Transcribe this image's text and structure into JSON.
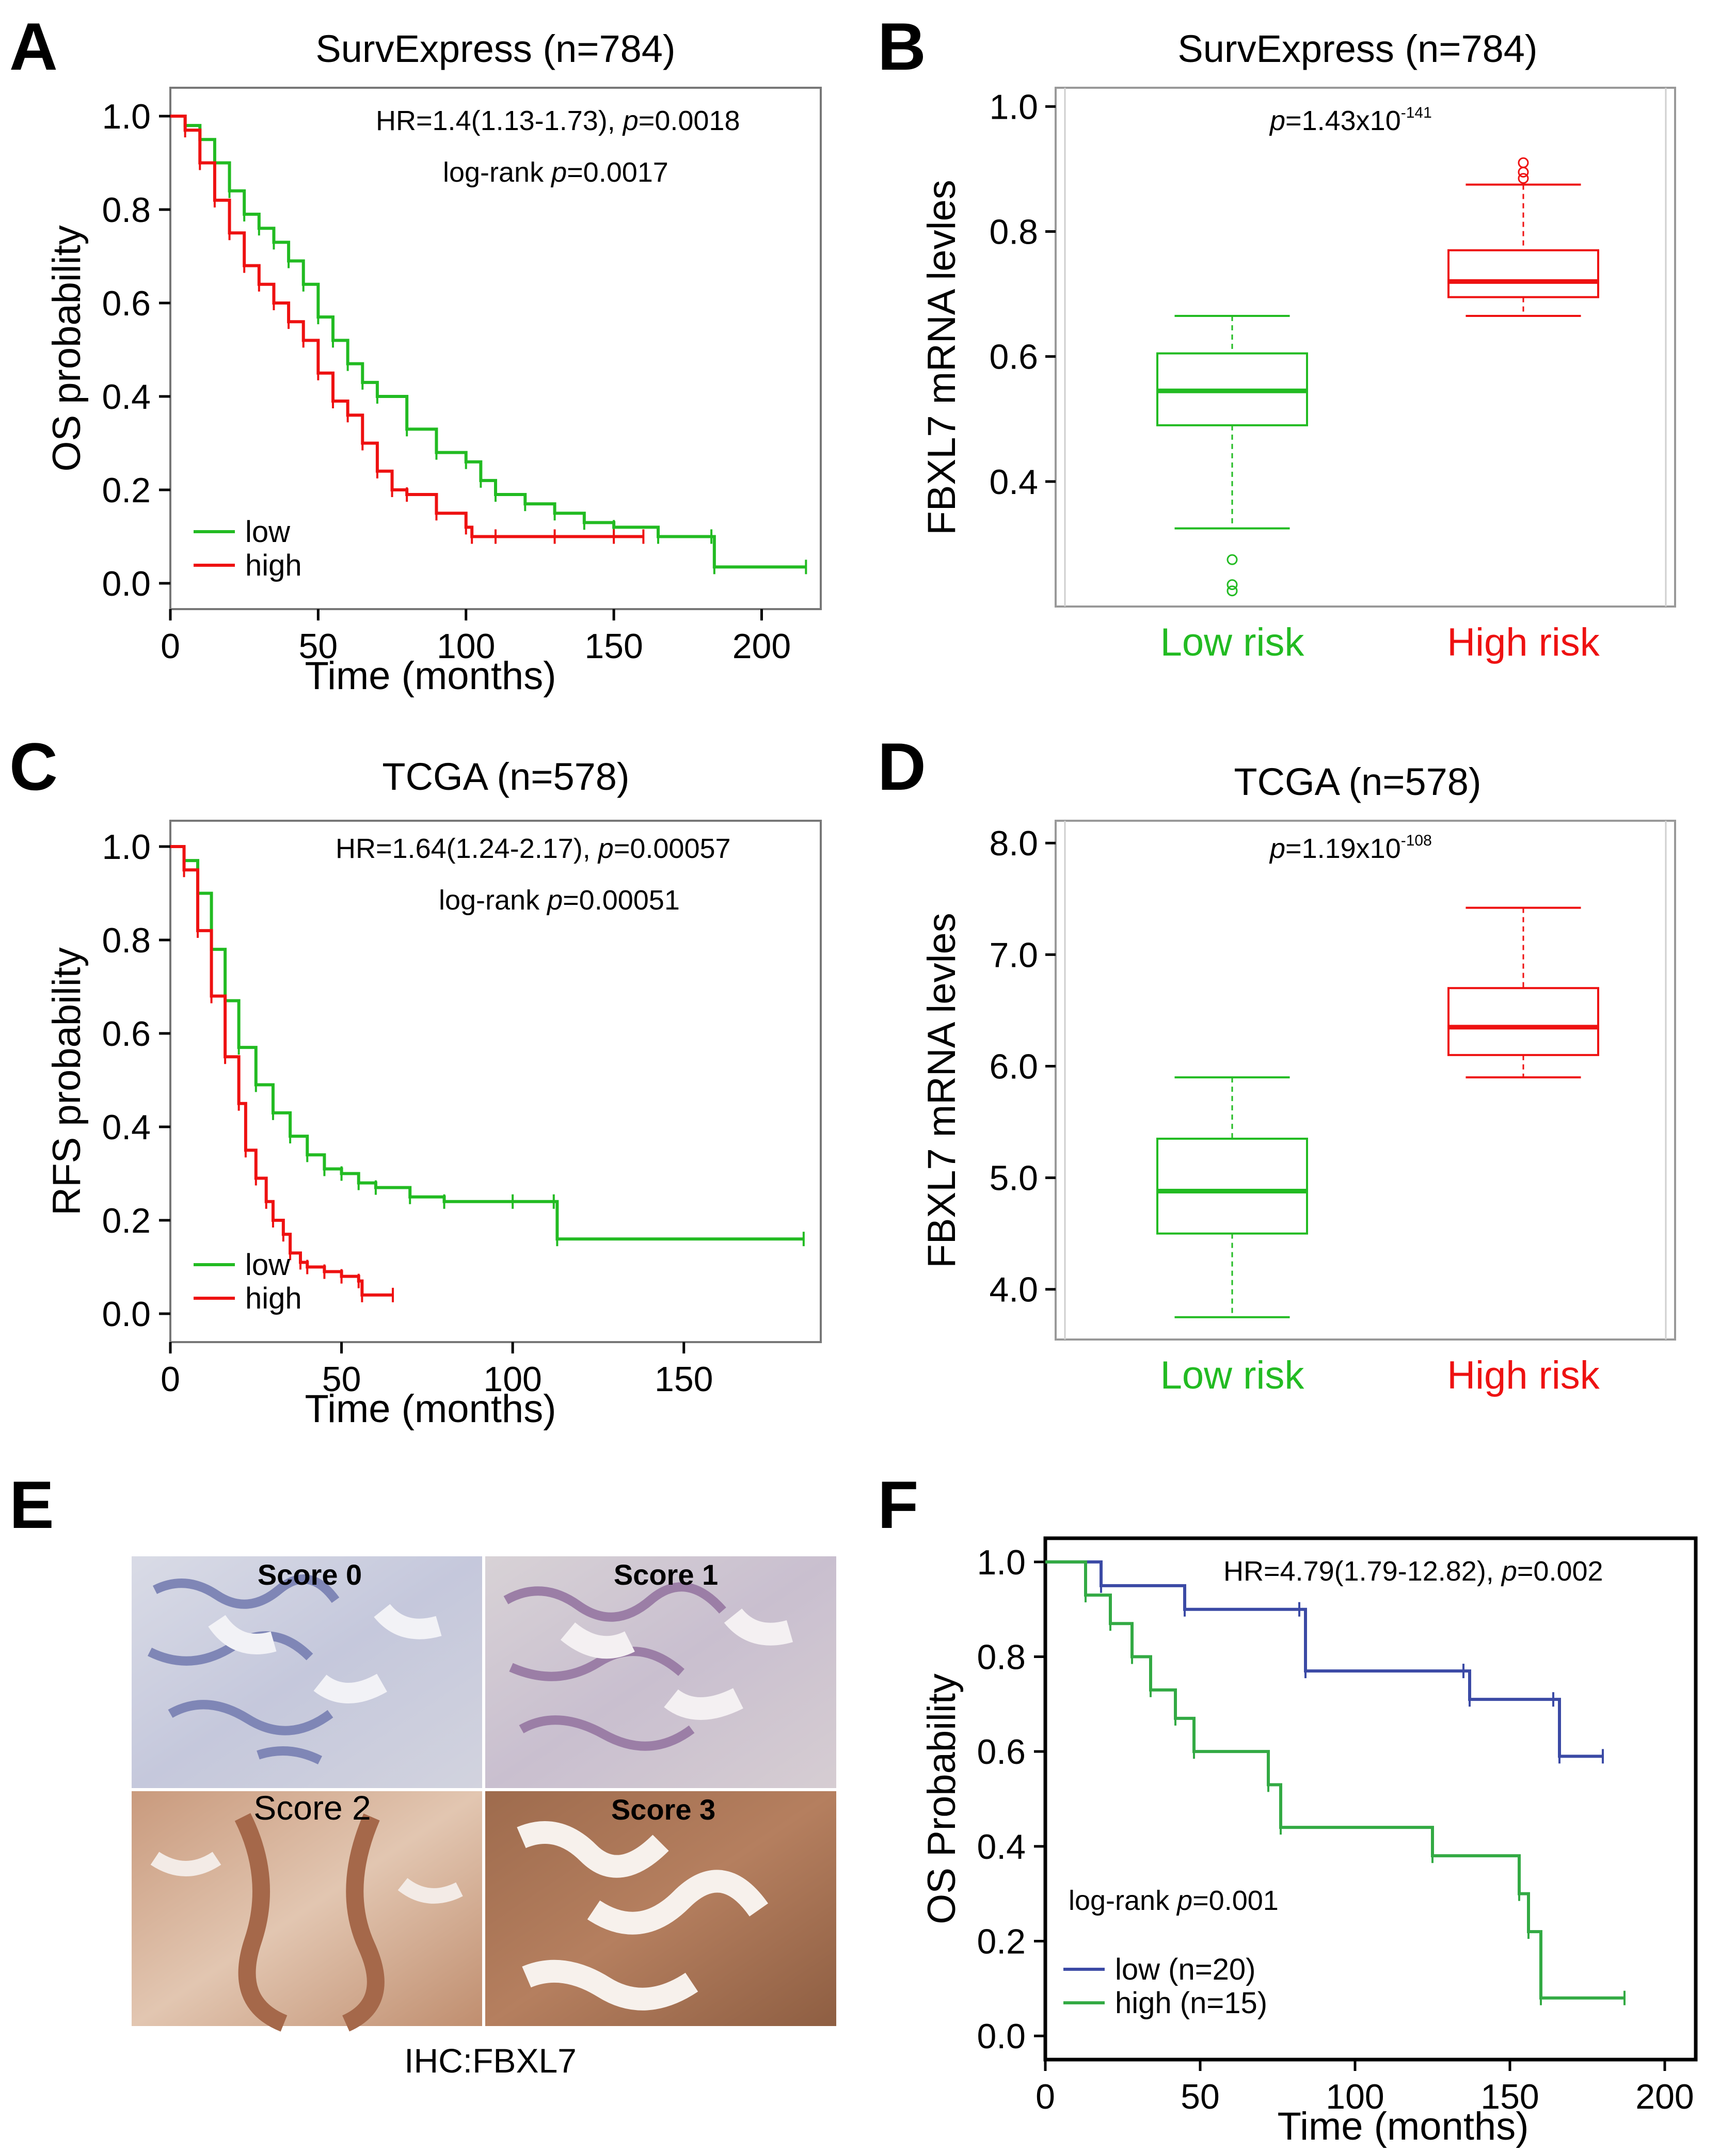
{
  "panels": {
    "A": {
      "letter": "A",
      "title": "SurvExpress (n=784)",
      "hr_text": "HR=1.4(1.13-1.73), ",
      "p_label": "p",
      "p_value": "=0.0018",
      "logrank_prefix": "log-rank ",
      "logrank_value": "=0.0017",
      "legend": [
        "low",
        "high"
      ]
    },
    "B": {
      "letter": "B",
      "title": "SurvExpress (n=784)",
      "p_label": "p",
      "p_text": "=1.43x10",
      "p_exp": "-141"
    },
    "C": {
      "letter": "C",
      "title": "TCGA (n=578)",
      "hr_text": "HR=1.64(1.24-2.17), ",
      "p_label": "p",
      "p_value": "=0.00057",
      "logrank_prefix": "log-rank ",
      "logrank_value": "=0.00051",
      "legend": [
        "low",
        "high"
      ]
    },
    "D": {
      "letter": "D",
      "title": "TCGA (n=578)",
      "p_label": "p",
      "p_text": "=1.19x10",
      "p_exp": "-108"
    },
    "E": {
      "letter": "E",
      "caption": "IHC:FBXL7",
      "scores": [
        "Score 0",
        "Score 1",
        "Score 2",
        "Score 3"
      ]
    },
    "F": {
      "letter": "F",
      "hr_text": "HR=4.79(1.79-12.82), ",
      "p_label": "p",
      "p_value": "=0.002",
      "logrank_prefix": "log-rank ",
      "logrank_value": "=0.001",
      "legend": [
        "low (n=20)",
        "high (n=15)"
      ]
    }
  },
  "colors": {
    "green": "#22bb22",
    "red": "#ee1111",
    "blue": "#3b4aa5",
    "f_green": "#33aa44",
    "frame": "#000000",
    "box_frame": "#999999"
  },
  "chart_data": [
    {
      "id": "A",
      "type": "line",
      "title": "SurvExpress (n=784)",
      "xlabel": "Time (months)",
      "ylabel": "OS probability",
      "xlim": [
        0,
        220
      ],
      "ylim": [
        0,
        1.05
      ],
      "xticks": [
        0,
        50,
        100,
        150,
        200
      ],
      "yticks": [
        0.0,
        0.2,
        0.4,
        0.6,
        0.8,
        1.0
      ],
      "series": [
        {
          "name": "low",
          "color": "green",
          "x": [
            0,
            5,
            10,
            15,
            20,
            25,
            30,
            35,
            40,
            45,
            50,
            55,
            60,
            65,
            70,
            80,
            90,
            100,
            105,
            110,
            120,
            130,
            140,
            150,
            165,
            183,
            184,
            215
          ],
          "y": [
            1.0,
            0.98,
            0.95,
            0.9,
            0.84,
            0.79,
            0.76,
            0.73,
            0.69,
            0.64,
            0.57,
            0.52,
            0.47,
            0.43,
            0.4,
            0.33,
            0.28,
            0.26,
            0.22,
            0.19,
            0.17,
            0.15,
            0.13,
            0.12,
            0.1,
            0.1,
            0.035,
            0.035
          ]
        },
        {
          "name": "high",
          "color": "red",
          "x": [
            0,
            5,
            10,
            15,
            20,
            25,
            30,
            35,
            40,
            45,
            50,
            55,
            60,
            65,
            70,
            75,
            80,
            90,
            100,
            102,
            110,
            130,
            150,
            160
          ],
          "y": [
            1.0,
            0.97,
            0.9,
            0.82,
            0.75,
            0.68,
            0.64,
            0.6,
            0.56,
            0.52,
            0.45,
            0.39,
            0.36,
            0.3,
            0.24,
            0.2,
            0.19,
            0.15,
            0.12,
            0.1,
            0.1,
            0.1,
            0.1,
            0.1
          ]
        }
      ]
    },
    {
      "id": "B",
      "type": "box",
      "title": "SurvExpress (n=784)",
      "ylabel": "FBXL7 mRNA levles",
      "ylim": [
        0.2,
        1.03
      ],
      "yticks": [
        0.4,
        0.6,
        0.8,
        1.0
      ],
      "categories": [
        "Low risk",
        "High risk"
      ],
      "boxes": [
        {
          "name": "Low risk",
          "color": "green",
          "whisker_low": 0.325,
          "q1": 0.49,
          "median": 0.545,
          "q3": 0.605,
          "whisker_high": 0.665,
          "outliers": [
            0.275,
            0.235,
            0.225
          ]
        },
        {
          "name": "High risk",
          "color": "red",
          "whisker_low": 0.665,
          "q1": 0.695,
          "median": 0.72,
          "q3": 0.77,
          "whisker_high": 0.875,
          "outliers": [
            0.885,
            0.895,
            0.91
          ]
        }
      ]
    },
    {
      "id": "C",
      "type": "line",
      "title": "TCGA (n=578)",
      "xlabel": "Time (months)",
      "ylabel": "RFS probability",
      "xlim": [
        0,
        190
      ],
      "ylim": [
        0,
        1.05
      ],
      "xticks": [
        0,
        50,
        100,
        150
      ],
      "yticks": [
        0.0,
        0.2,
        0.4,
        0.6,
        0.8,
        1.0
      ],
      "series": [
        {
          "name": "low",
          "color": "green",
          "x": [
            0,
            4,
            8,
            12,
            16,
            20,
            25,
            30,
            35,
            40,
            45,
            50,
            55,
            60,
            70,
            80,
            100,
            112,
            113,
            185
          ],
          "y": [
            1.0,
            0.97,
            0.9,
            0.78,
            0.67,
            0.57,
            0.49,
            0.43,
            0.38,
            0.34,
            0.31,
            0.3,
            0.28,
            0.27,
            0.25,
            0.24,
            0.24,
            0.24,
            0.16,
            0.16
          ]
        },
        {
          "name": "high",
          "color": "red",
          "x": [
            0,
            4,
            8,
            12,
            16,
            20,
            22,
            25,
            28,
            30,
            33,
            35,
            38,
            40,
            45,
            50,
            55,
            56,
            65
          ],
          "y": [
            1.0,
            0.95,
            0.82,
            0.68,
            0.55,
            0.45,
            0.35,
            0.29,
            0.24,
            0.2,
            0.17,
            0.13,
            0.11,
            0.1,
            0.09,
            0.08,
            0.07,
            0.04,
            0.04
          ]
        }
      ]
    },
    {
      "id": "D",
      "type": "box",
      "title": "TCGA (n=578)",
      "ylabel": "FBXL7 mRNA levles",
      "ylim": [
        3.55,
        8.2
      ],
      "yticks": [
        4.0,
        5.0,
        6.0,
        7.0,
        8.0
      ],
      "categories": [
        "Low risk",
        "High risk"
      ],
      "boxes": [
        {
          "name": "Low risk",
          "color": "green",
          "whisker_low": 3.75,
          "q1": 4.5,
          "median": 4.88,
          "q3": 5.35,
          "whisker_high": 5.9,
          "outliers": []
        },
        {
          "name": "High risk",
          "color": "red",
          "whisker_low": 5.9,
          "q1": 6.1,
          "median": 6.35,
          "q3": 6.7,
          "whisker_high": 7.42,
          "outliers": []
        }
      ]
    },
    {
      "id": "F",
      "type": "line",
      "xlabel": "Time (months)",
      "ylabel": "OS Probability",
      "xlim": [
        0,
        210
      ],
      "ylim": [
        -0.05,
        1.05
      ],
      "xticks": [
        0,
        50,
        100,
        150,
        200
      ],
      "yticks": [
        0.0,
        0.2,
        0.4,
        0.6,
        0.8,
        1.0
      ],
      "series": [
        {
          "name": "low (n=20)",
          "color": "blue",
          "x": [
            0,
            18,
            45,
            82,
            84,
            135,
            137,
            164,
            166,
            180
          ],
          "y": [
            1.0,
            0.95,
            0.9,
            0.9,
            0.77,
            0.77,
            0.71,
            0.71,
            0.59,
            0.59
          ]
        },
        {
          "name": "high (n=15)",
          "color": "f_green",
          "x": [
            0,
            13,
            21,
            28,
            34,
            42,
            48,
            72,
            76,
            125,
            153,
            156,
            160,
            187
          ],
          "y": [
            1.0,
            0.93,
            0.87,
            0.8,
            0.73,
            0.67,
            0.6,
            0.53,
            0.44,
            0.38,
            0.3,
            0.22,
            0.08,
            0.08
          ]
        }
      ]
    }
  ]
}
